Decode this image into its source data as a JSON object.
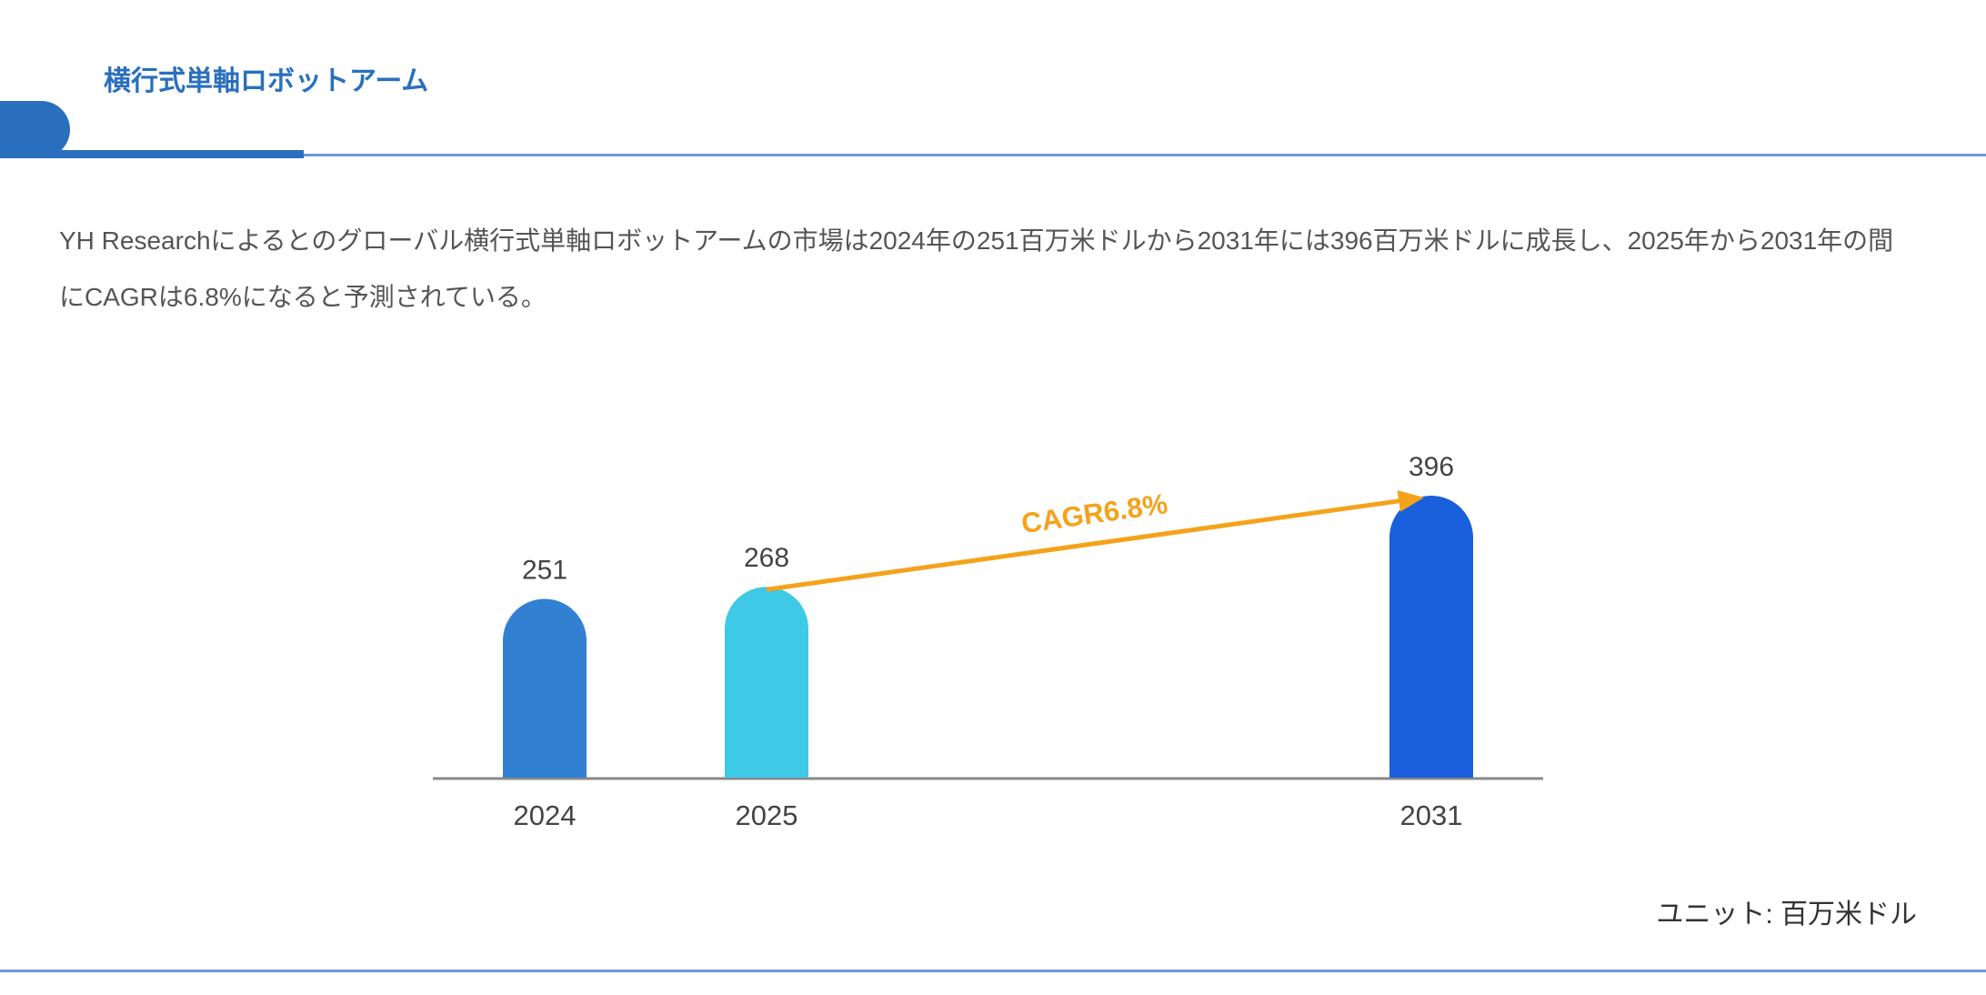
{
  "header": {
    "title": "横行式単軸ロボットアーム",
    "accent_color": "#2a6fbd"
  },
  "description": "YH Researchによるとのグローバル横行式単軸ロボットアームの市場は2024年の251百万米ドルから2031年には396百万米ドルに成長し、2025年から2031年の間にCAGRは6.8%になると予測されている。",
  "unit_label": "ユニット: 百万米ドル",
  "chart_data": {
    "type": "bar",
    "categories": [
      "2024",
      "2025",
      "2031"
    ],
    "values": [
      251,
      268,
      396
    ],
    "colors": [
      "#3180d2",
      "#3ec9e6",
      "#1a5fdc"
    ],
    "annotation": {
      "text": "CAGR6.8%",
      "from": "2025",
      "to": "2031",
      "color": "#f5a21b"
    },
    "ylim": [
      0,
      396
    ],
    "grid": false
  }
}
